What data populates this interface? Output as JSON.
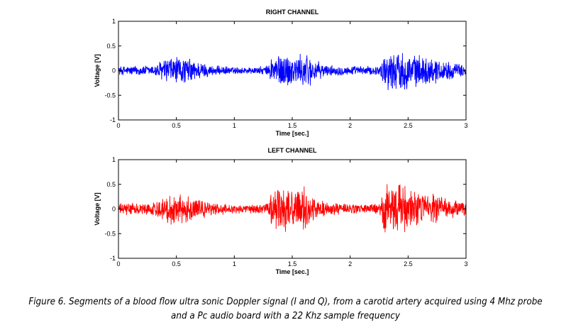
{
  "chart_data": [
    {
      "type": "line",
      "title": "RIGHT CHANNEL",
      "xlabel": "Time [sec.]",
      "ylabel": "Voltage [V]",
      "xlim": [
        0,
        3
      ],
      "ylim": [
        -1,
        1
      ],
      "xticks": [
        0,
        0.5,
        1,
        1.5,
        2,
        2.5,
        3
      ],
      "xtick_labels": [
        "0",
        "0.5",
        "1",
        "1.5",
        "2",
        "2.5",
        "3"
      ],
      "yticks": [
        -1,
        -0.5,
        0,
        0.5,
        1
      ],
      "ytick_labels": [
        "-1",
        "-0.5",
        "0",
        "0.5",
        "1"
      ],
      "grid": false,
      "color": "#0000ff",
      "envelope": {
        "x": [
          0,
          0.3,
          0.38,
          0.45,
          0.6,
          0.7,
          0.8,
          1.0,
          1.2,
          1.3,
          1.32,
          1.45,
          1.55,
          1.62,
          1.7,
          1.8,
          2.0,
          2.25,
          2.3,
          2.45,
          2.55,
          2.7,
          2.85,
          3.0
        ],
        "amplitude": [
          0.1,
          0.12,
          0.25,
          0.32,
          0.28,
          0.2,
          0.12,
          0.08,
          0.08,
          0.12,
          0.35,
          0.4,
          0.32,
          0.42,
          0.22,
          0.12,
          0.1,
          0.1,
          0.4,
          0.45,
          0.35,
          0.3,
          0.2,
          0.12
        ]
      }
    },
    {
      "type": "line",
      "title": "LEFT CHANNEL",
      "xlabel": "Time [sec.]",
      "ylabel": "Voltage [V]",
      "xlim": [
        0,
        3
      ],
      "ylim": [
        -1,
        1
      ],
      "xticks": [
        0,
        0.5,
        1,
        1.5,
        2,
        2.5,
        3
      ],
      "xtick_labels": [
        "0",
        "0.5",
        "1",
        "1.5",
        "2",
        "2.5",
        "3"
      ],
      "yticks": [
        -1,
        -0.5,
        0,
        0.5,
        1
      ],
      "ytick_labels": [
        "-1",
        "-0.5",
        "0",
        "0.5",
        "1"
      ],
      "grid": false,
      "color": "#ff0000",
      "envelope": {
        "x": [
          0,
          0.3,
          0.38,
          0.45,
          0.6,
          0.7,
          0.8,
          1.0,
          1.2,
          1.3,
          1.32,
          1.45,
          1.55,
          1.62,
          1.7,
          1.8,
          2.0,
          2.25,
          2.3,
          2.45,
          2.55,
          2.7,
          2.85,
          3.0
        ],
        "amplitude": [
          0.12,
          0.14,
          0.28,
          0.35,
          0.3,
          0.22,
          0.14,
          0.1,
          0.1,
          0.14,
          0.45,
          0.48,
          0.38,
          0.52,
          0.25,
          0.14,
          0.12,
          0.12,
          0.52,
          0.55,
          0.42,
          0.35,
          0.22,
          0.14
        ]
      }
    }
  ],
  "caption": {
    "line1": "Figure 6. Segments of a blood flow ultra sonic Doppler signal (I and Q), from a carotid artery acquired using 4 Mhz probe",
    "line2": "and a Pc audio board with a 22 Khz sample frequency"
  }
}
